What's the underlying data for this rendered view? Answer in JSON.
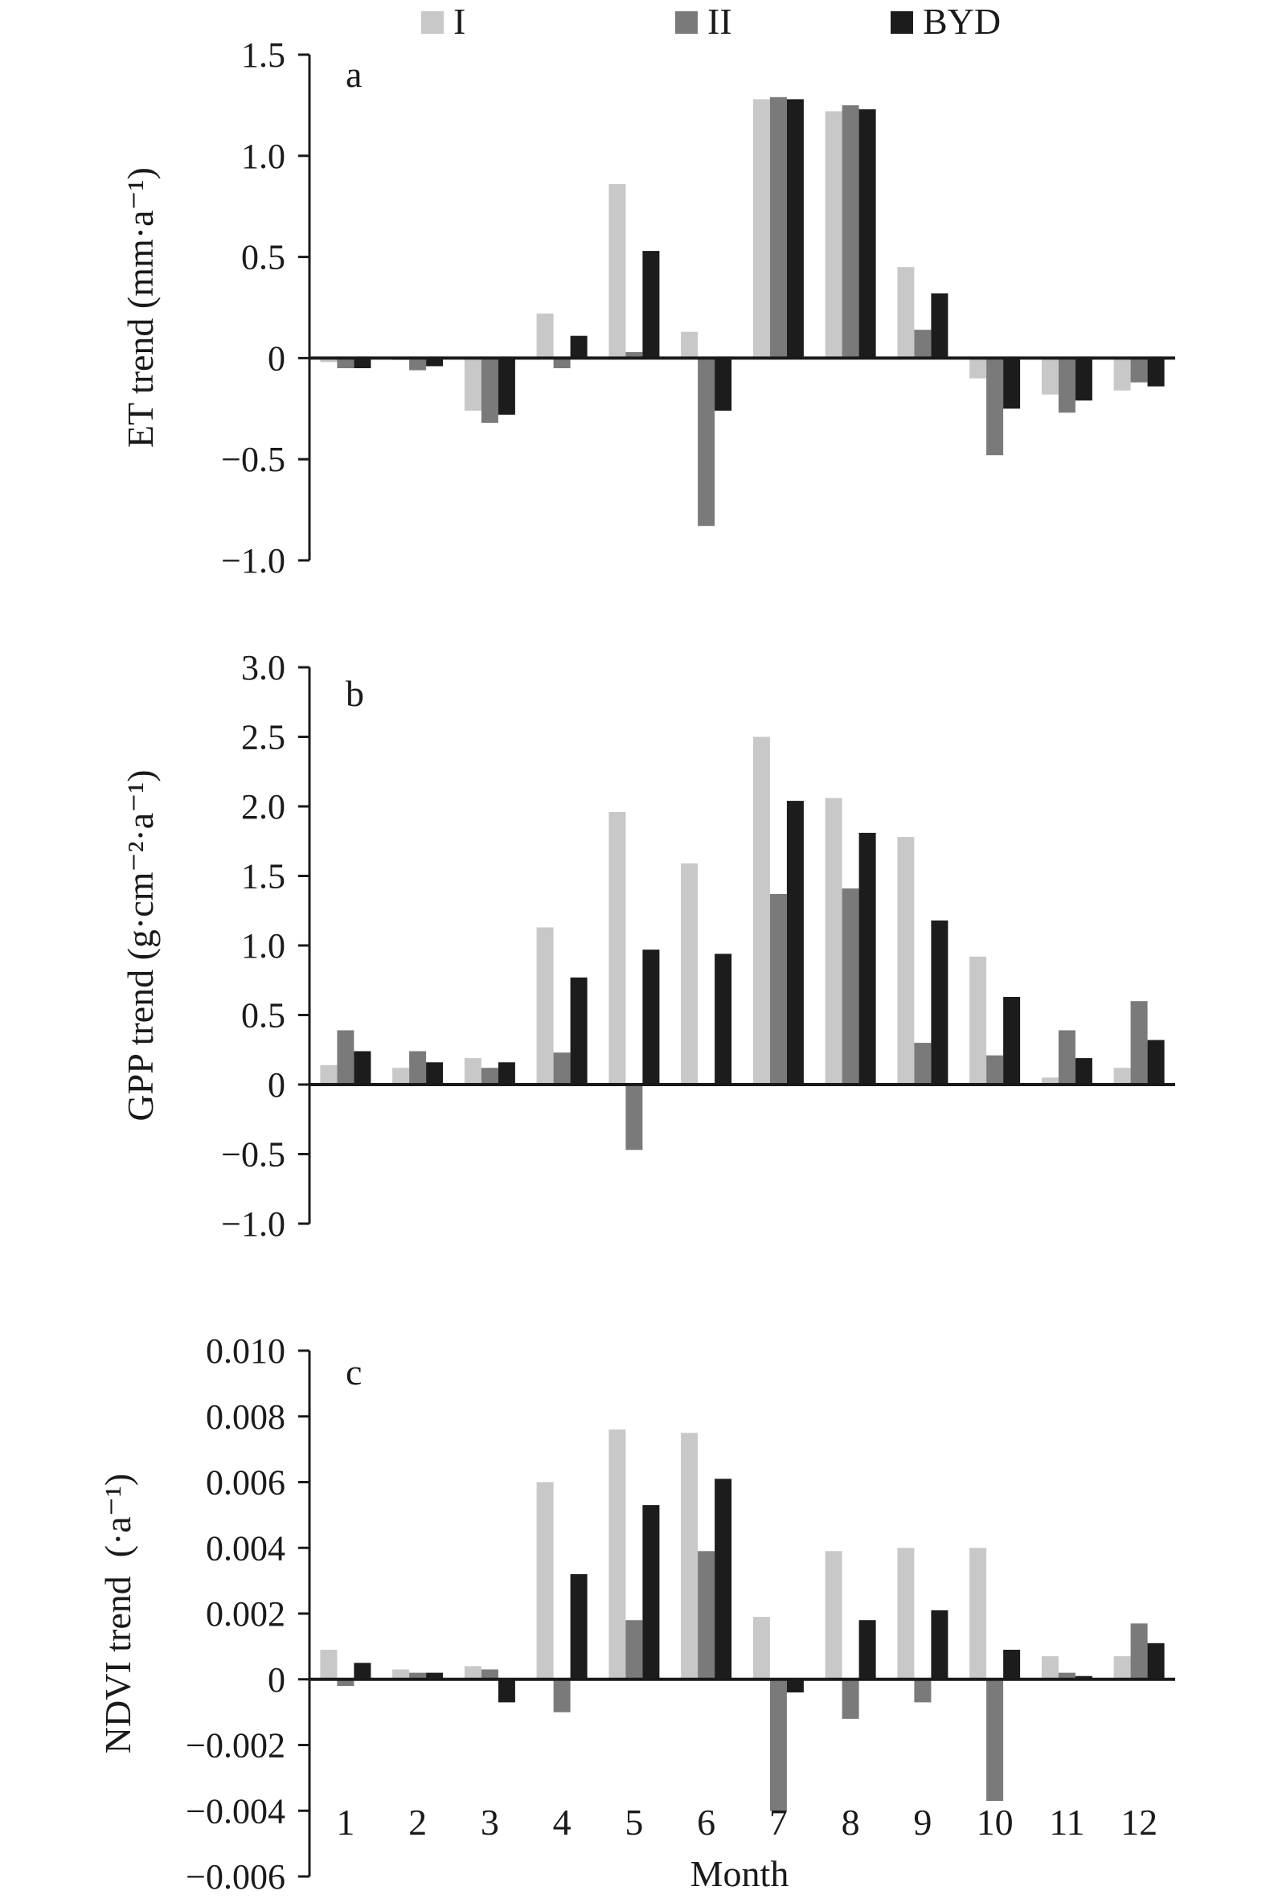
{
  "legend": [
    {
      "label": "I",
      "color": "#c8c8c8"
    },
    {
      "label": "II",
      "color": "#7a7a7a"
    },
    {
      "label": "BYD",
      "color": "#1c1c1c"
    }
  ],
  "xlabel": "Month",
  "chart_data": [
    {
      "type": "bar",
      "panel": "a",
      "ylabel": "ET trend (mm·a⁻¹)",
      "categories": [
        "1",
        "2",
        "3",
        "4",
        "5",
        "6",
        "7",
        "8",
        "9",
        "10",
        "11",
        "12"
      ],
      "ylim": [
        -1.0,
        1.5
      ],
      "yticks": [
        -1.0,
        -0.5,
        0,
        0.5,
        1.0,
        1.5
      ],
      "ytick_labels": [
        "−1.0",
        "−0.5",
        "0",
        "0.5",
        "1.0",
        "1.5"
      ],
      "series": [
        {
          "name": "I",
          "values": [
            -0.02,
            -0.01,
            -0.26,
            0.22,
            0.86,
            0.13,
            1.28,
            1.22,
            0.45,
            -0.1,
            -0.18,
            -0.16
          ]
        },
        {
          "name": "II",
          "values": [
            -0.05,
            -0.06,
            -0.32,
            -0.05,
            0.03,
            -0.83,
            1.29,
            1.25,
            0.14,
            -0.48,
            -0.27,
            -0.12
          ]
        },
        {
          "name": "BYD",
          "values": [
            -0.05,
            -0.04,
            -0.28,
            0.11,
            0.53,
            -0.26,
            1.28,
            1.23,
            0.32,
            -0.25,
            -0.21,
            -0.14
          ]
        }
      ]
    },
    {
      "type": "bar",
      "panel": "b",
      "ylabel": "GPP trend (g·cm⁻²·a⁻¹)",
      "categories": [
        "1",
        "2",
        "3",
        "4",
        "5",
        "6",
        "7",
        "8",
        "9",
        "10",
        "11",
        "12"
      ],
      "ylim": [
        -1.0,
        3.0
      ],
      "yticks": [
        -1.0,
        -0.5,
        0,
        0.5,
        1.0,
        1.5,
        2.0,
        2.5,
        3.0
      ],
      "ytick_labels": [
        "−1.0",
        "−0.5",
        "0",
        "0.5",
        "1.0",
        "1.5",
        "2.0",
        "2.5",
        "3.0"
      ],
      "series": [
        {
          "name": "I",
          "values": [
            0.14,
            0.12,
            0.19,
            1.13,
            1.96,
            1.59,
            2.5,
            2.06,
            1.78,
            0.92,
            0.05,
            0.12
          ]
        },
        {
          "name": "II",
          "values": [
            0.39,
            0.24,
            0.12,
            0.23,
            -0.47,
            0.0,
            1.37,
            1.41,
            0.3,
            0.21,
            0.39,
            0.6
          ]
        },
        {
          "name": "BYD",
          "values": [
            0.24,
            0.16,
            0.16,
            0.77,
            0.97,
            0.94,
            2.04,
            1.81,
            1.18,
            0.63,
            0.19,
            0.32
          ]
        }
      ]
    },
    {
      "type": "bar",
      "panel": "c",
      "ylabel": "NDVI trend (·a⁻¹)",
      "categories": [
        "1",
        "2",
        "3",
        "4",
        "5",
        "6",
        "7",
        "8",
        "9",
        "10",
        "11",
        "12"
      ],
      "ylim": [
        -0.006,
        0.01
      ],
      "yticks": [
        -0.006,
        -0.004,
        -0.002,
        0,
        0.002,
        0.004,
        0.006,
        0.008,
        0.01
      ],
      "ytick_labels": [
        "−0.006",
        "−0.004",
        "−0.002",
        "0",
        "0.002",
        "0.004",
        "0.006",
        "0.008",
        "0.010"
      ],
      "series": [
        {
          "name": "I",
          "values": [
            0.0009,
            0.0003,
            0.0004,
            0.006,
            0.0076,
            0.0075,
            0.0019,
            0.0039,
            0.004,
            0.004,
            0.0007,
            0.0007
          ]
        },
        {
          "name": "II",
          "values": [
            -0.0002,
            0.0002,
            0.0003,
            -0.001,
            0.0018,
            0.0039,
            -0.004,
            -0.0012,
            -0.0007,
            -0.0037,
            0.0002,
            0.0017
          ]
        },
        {
          "name": "BYD",
          "values": [
            0.0005,
            0.0002,
            -0.0007,
            0.0032,
            0.0053,
            0.0061,
            -0.0004,
            0.0018,
            0.0021,
            0.0009,
            0.0001,
            0.0011
          ]
        }
      ]
    }
  ]
}
